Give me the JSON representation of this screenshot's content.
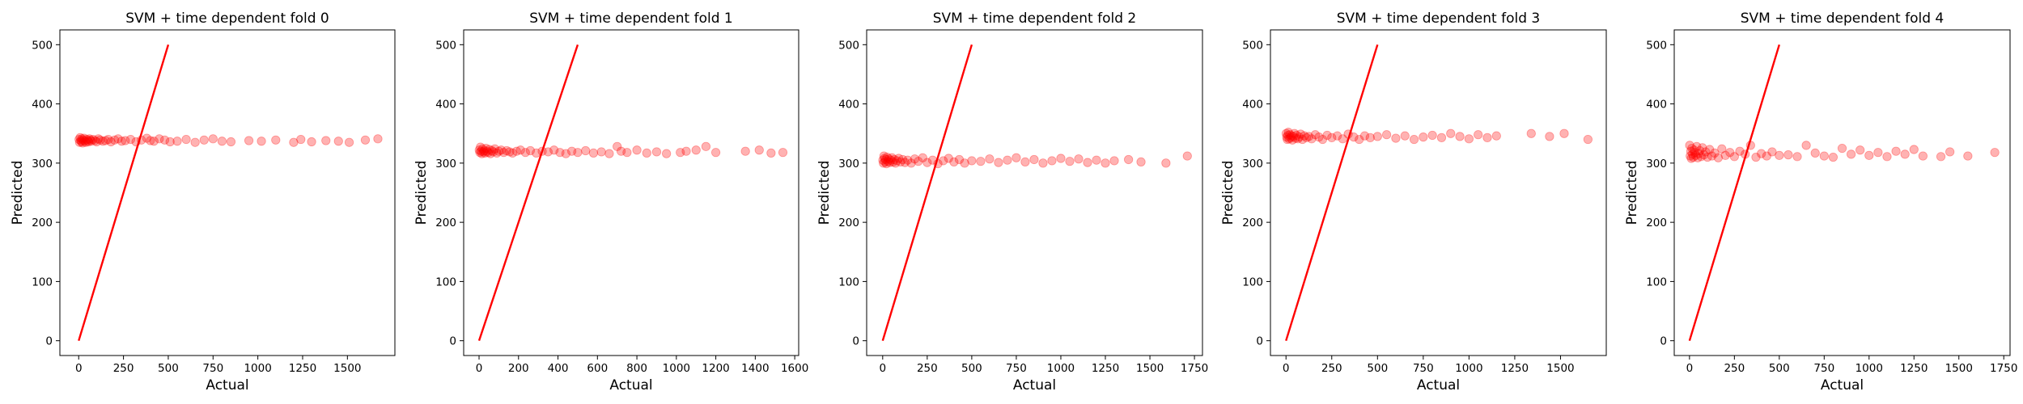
{
  "chart_data": [
    {
      "type": "scatter",
      "title": "SVM + time dependent fold 0",
      "xlabel": "Actual",
      "ylabel": "Predicted",
      "xlim": [
        -105,
        1765
      ],
      "ylim": [
        -25,
        525
      ],
      "xticks": [
        0,
        250,
        500,
        750,
        1000,
        1250,
        1500
      ],
      "yticks": [
        0,
        100,
        200,
        300,
        400,
        500
      ],
      "reference_line": {
        "x": [
          0,
          500
        ],
        "y": [
          0,
          500
        ],
        "color": "#ff0000"
      },
      "marker_color": "#ff0000",
      "points": {
        "x": [
          2,
          5,
          8,
          12,
          15,
          18,
          22,
          25,
          30,
          35,
          40,
          45,
          50,
          55,
          60,
          65,
          70,
          80,
          90,
          100,
          110,
          120,
          135,
          150,
          165,
          180,
          200,
          220,
          240,
          260,
          290,
          320,
          350,
          380,
          400,
          420,
          450,
          480,
          510,
          550,
          600,
          650,
          700,
          750,
          800,
          850,
          950,
          1020,
          1100,
          1200,
          1240,
          1300,
          1380,
          1450,
          1510,
          1600,
          1670
        ],
        "y": [
          340,
          335,
          343,
          338,
          336,
          341,
          334,
          339,
          342,
          337,
          335,
          340,
          338,
          336,
          341,
          339,
          337,
          340,
          338,
          336,
          341,
          339,
          337,
          338,
          340,
          336,
          339,
          341,
          337,
          338,
          340,
          336,
          339,
          342,
          338,
          337,
          341,
          339,
          336,
          337,
          340,
          335,
          339,
          341,
          337,
          336,
          338,
          337,
          339,
          335,
          340,
          336,
          338,
          337,
          335,
          339,
          341
        ]
      }
    },
    {
      "type": "scatter",
      "title": "SVM + time dependent fold 1",
      "xlabel": "Actual",
      "ylabel": "Predicted",
      "xlim": [
        -78,
        1620
      ],
      "ylim": [
        -25,
        525
      ],
      "xticks": [
        0,
        200,
        400,
        600,
        800,
        1000,
        1200,
        1400,
        1600
      ],
      "yticks": [
        0,
        100,
        200,
        300,
        400,
        500
      ],
      "reference_line": {
        "x": [
          0,
          500
        ],
        "y": [
          0,
          500
        ],
        "color": "#ff0000"
      },
      "marker_color": "#ff0000",
      "points": {
        "x": [
          1,
          4,
          7,
          10,
          14,
          18,
          22,
          26,
          30,
          35,
          40,
          46,
          52,
          58,
          65,
          72,
          80,
          90,
          100,
          112,
          125,
          140,
          155,
          170,
          190,
          210,
          235,
          260,
          290,
          320,
          350,
          380,
          410,
          440,
          470,
          500,
          540,
          580,
          620,
          660,
          700,
          720,
          750,
          800,
          850,
          900,
          950,
          1020,
          1050,
          1100,
          1150,
          1200,
          1350,
          1420,
          1480,
          1540
        ],
        "y": [
          322,
          318,
          327,
          320,
          316,
          324,
          319,
          321,
          317,
          325,
          320,
          318,
          323,
          316,
          321,
          319,
          324,
          317,
          320,
          322,
          318,
          321,
          319,
          317,
          320,
          322,
          318,
          321,
          317,
          320,
          319,
          322,
          318,
          316,
          320,
          318,
          321,
          317,
          319,
          316,
          328,
          320,
          318,
          322,
          317,
          319,
          316,
          318,
          320,
          322,
          328,
          318,
          320,
          322,
          317,
          318
        ]
      }
    },
    {
      "type": "scatter",
      "title": "SVM + time dependent fold 2",
      "xlabel": "Actual",
      "ylabel": "Predicted",
      "xlim": [
        -90,
        1795
      ],
      "ylim": [
        -25,
        525
      ],
      "xticks": [
        0,
        250,
        500,
        750,
        1000,
        1250,
        1500,
        1750
      ],
      "yticks": [
        0,
        100,
        200,
        300,
        400,
        500
      ],
      "reference_line": {
        "x": [
          0,
          500
        ],
        "y": [
          0,
          500
        ],
        "color": "#ff0000"
      },
      "marker_color": "#ff0000",
      "points": {
        "x": [
          1,
          4,
          7,
          10,
          13,
          17,
          21,
          25,
          30,
          35,
          40,
          46,
          52,
          58,
          65,
          72,
          80,
          90,
          100,
          112,
          125,
          140,
          160,
          180,
          200,
          225,
          250,
          280,
          310,
          340,
          370,
          400,
          430,
          460,
          500,
          550,
          600,
          650,
          700,
          750,
          800,
          850,
          900,
          950,
          1000,
          1050,
          1100,
          1150,
          1200,
          1250,
          1300,
          1380,
          1450,
          1590,
          1710
        ],
        "y": [
          305,
          300,
          312,
          308,
          302,
          306,
          299,
          310,
          303,
          307,
          301,
          305,
          309,
          302,
          306,
          300,
          304,
          308,
          302,
          306,
          301,
          305,
          300,
          307,
          303,
          309,
          301,
          305,
          299,
          304,
          308,
          302,
          306,
          300,
          304,
          303,
          307,
          301,
          305,
          309,
          302,
          306,
          300,
          304,
          308,
          303,
          307,
          301,
          305,
          300,
          304,
          306,
          302,
          300,
          312
        ]
      }
    },
    {
      "type": "scatter",
      "title": "SVM + time dependent fold 3",
      "xlabel": "Actual",
      "ylabel": "Predicted",
      "xlim": [
        -85,
        1750
      ],
      "ylim": [
        -25,
        525
      ],
      "xticks": [
        0,
        250,
        500,
        750,
        1000,
        1250,
        1500
      ],
      "yticks": [
        0,
        100,
        200,
        300,
        400,
        500
      ],
      "reference_line": {
        "x": [
          0,
          500
        ],
        "y": [
          0,
          500
        ],
        "color": "#ff0000"
      },
      "marker_color": "#ff0000",
      "points": {
        "x": [
          1,
          4,
          7,
          10,
          13,
          17,
          21,
          25,
          30,
          35,
          40,
          46,
          52,
          58,
          65,
          72,
          80,
          90,
          100,
          112,
          125,
          140,
          160,
          180,
          200,
          225,
          250,
          280,
          310,
          340,
          370,
          400,
          430,
          460,
          500,
          550,
          600,
          650,
          700,
          750,
          800,
          850,
          900,
          950,
          1000,
          1050,
          1100,
          1150,
          1340,
          1440,
          1520,
          1650
        ],
        "y": [
          350,
          344,
          340,
          347,
          352,
          341,
          348,
          343,
          346,
          339,
          345,
          350,
          342,
          347,
          341,
          344,
          349,
          340,
          346,
          343,
          345,
          341,
          348,
          344,
          340,
          347,
          343,
          346,
          341,
          349,
          344,
          340,
          346,
          343,
          345,
          348,
          342,
          346,
          340,
          344,
          347,
          343,
          350,
          345,
          341,
          348,
          343,
          346,
          350,
          345,
          350,
          340
        ]
      }
    },
    {
      "type": "scatter",
      "title": "SVM + time dependent fold 4",
      "xlabel": "Actual",
      "ylabel": "Predicted",
      "xlim": [
        -85,
        1785
      ],
      "ylim": [
        -25,
        525
      ],
      "xticks": [
        0,
        250,
        500,
        750,
        1000,
        1250,
        1500,
        1750
      ],
      "yticks": [
        0,
        100,
        200,
        300,
        400,
        500
      ],
      "reference_line": {
        "x": [
          0,
          500
        ],
        "y": [
          0,
          500
        ],
        "color": "#ff0000"
      },
      "marker_color": "#ff0000",
      "points": {
        "x": [
          1,
          4,
          7,
          10,
          13,
          17,
          21,
          25,
          30,
          35,
          40,
          46,
          52,
          58,
          65,
          72,
          80,
          90,
          100,
          112,
          125,
          140,
          160,
          180,
          200,
          225,
          250,
          280,
          310,
          340,
          370,
          400,
          430,
          460,
          500,
          550,
          600,
          650,
          700,
          750,
          800,
          850,
          900,
          950,
          1000,
          1050,
          1100,
          1150,
          1200,
          1250,
          1300,
          1400,
          1450,
          1550,
          1700
        ],
        "y": [
          330,
          312,
          320,
          308,
          325,
          315,
          310,
          322,
          318,
          313,
          328,
          309,
          316,
          321,
          311,
          326,
          314,
          319,
          310,
          323,
          312,
          317,
          309,
          324,
          313,
          318,
          311,
          320,
          315,
          330,
          310,
          316,
          312,
          319,
          313,
          314,
          311,
          330,
          317,
          312,
          310,
          325,
          315,
          322,
          313,
          318,
          311,
          320,
          315,
          323,
          312,
          311,
          319,
          312,
          318
        ]
      }
    }
  ]
}
